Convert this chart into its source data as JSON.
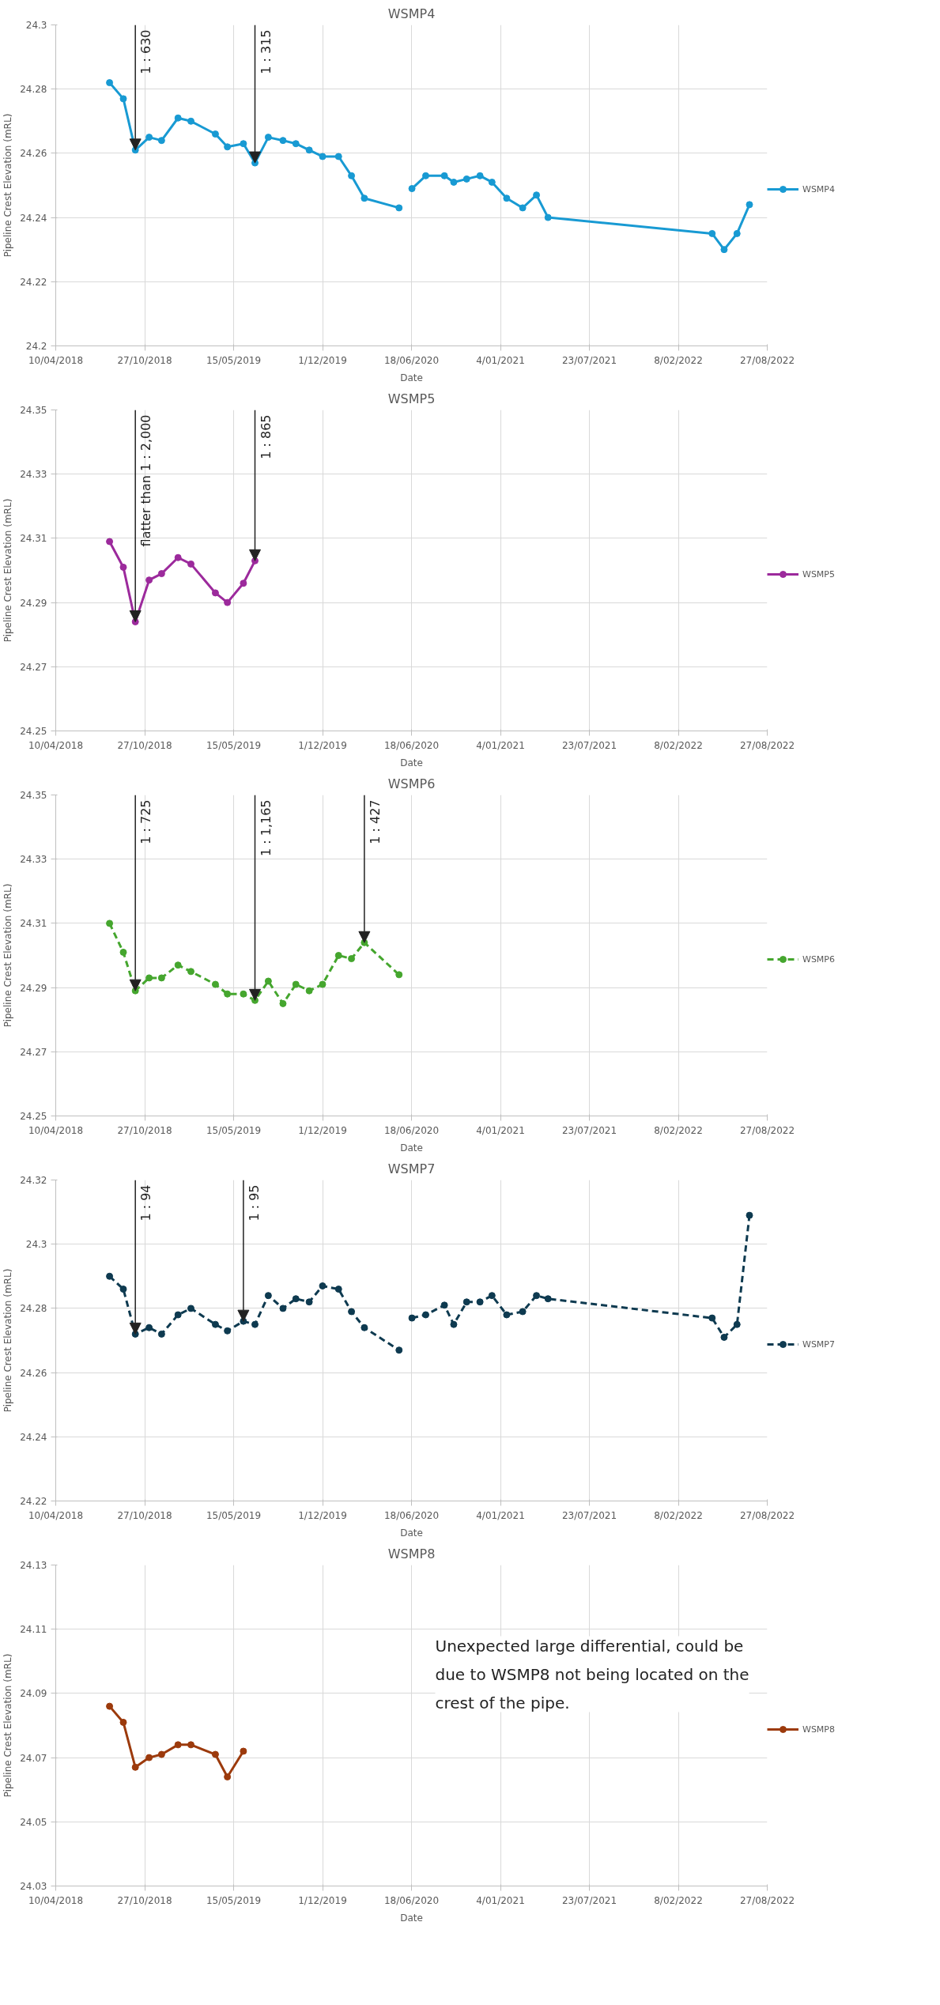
{
  "chart_data": [
    {
      "type": "line",
      "title": "WSMP4",
      "xlabel": "Date",
      "ylabel": "Pipeline Crest Elevation (mRL)",
      "legend": "right",
      "grid": true,
      "marker": "circle",
      "line_style": "solid",
      "x": [
        "2018-08-09",
        "2018-09-09",
        "2018-10-06",
        "2018-11-06",
        "2018-12-04",
        "2019-01-10",
        "2019-02-08",
        "2019-04-04",
        "2019-05-01",
        "2019-06-06",
        "2019-07-02",
        "2019-08-01",
        "2019-09-03",
        "2019-10-02",
        "2019-11-01",
        "2019-12-01",
        "2020-01-06",
        "2020-02-04",
        "2020-03-04",
        "2020-05-21",
        "2020-06-05",
        "2020-06-19",
        "2020-07-20",
        "2020-08-31",
        "2020-09-21",
        "2020-10-20",
        "2020-11-19",
        "2020-12-16",
        "2021-01-18",
        "2021-02-23",
        "2021-03-26",
        "2021-04-21",
        "2022-04-25",
        "2022-05-22",
        "2022-06-20",
        "2022-07-18"
      ],
      "series": [
        {
          "name": "WSMP4",
          "color": "#189ad3",
          "values": [
            24.282,
            24.277,
            24.261,
            24.265,
            24.264,
            24.271,
            24.27,
            24.266,
            24.262,
            24.263,
            24.257,
            24.265,
            24.264,
            24.263,
            24.261,
            24.259,
            24.259,
            24.253,
            24.246,
            24.243,
            null,
            24.249,
            24.253,
            24.253,
            24.251,
            24.252,
            24.253,
            24.251,
            24.246,
            24.243,
            24.247,
            24.24,
            24.235,
            24.23,
            24.235,
            24.244
          ]
        }
      ],
      "xlim": [
        "2018-04-10",
        "2022-08-27"
      ],
      "xticks": [
        {
          "value": "2018-04-10",
          "label": "10/04/2018"
        },
        {
          "value": "2018-10-27",
          "label": "27/10/2018"
        },
        {
          "value": "2019-05-15",
          "label": "15/05/2019"
        },
        {
          "value": "2019-12-01",
          "label": "1/12/2019"
        },
        {
          "value": "2020-06-18",
          "label": "18/06/2020"
        },
        {
          "value": "2021-01-04",
          "label": "4/01/2021"
        },
        {
          "value": "2021-07-23",
          "label": "23/07/2021"
        },
        {
          "value": "2022-02-08",
          "label": "8/02/2022"
        },
        {
          "value": "2022-08-27",
          "label": "27/08/2022"
        }
      ],
      "ylim": [
        24.2,
        24.3
      ],
      "yticks": [
        24.2,
        24.22,
        24.24,
        24.26,
        24.28,
        24.3
      ],
      "annotations": [
        {
          "text": "1 : 630",
          "x": "2018-10-06",
          "y": 24.261
        },
        {
          "text": "1 : 315",
          "x": "2019-07-02",
          "y": 24.257
        }
      ]
    },
    {
      "type": "line",
      "title": "WSMP5",
      "xlabel": "Date",
      "ylabel": "Pipeline Crest Elevation (mRL)",
      "legend": "right",
      "grid": true,
      "marker": "circle",
      "line_style": "solid",
      "x": [
        "2018-08-09",
        "2018-09-09",
        "2018-10-06",
        "2018-11-06",
        "2018-12-04",
        "2019-01-10",
        "2019-02-08",
        "2019-04-04",
        "2019-05-01",
        "2019-06-06",
        "2019-07-02"
      ],
      "series": [
        {
          "name": "WSMP5",
          "color": "#9c2a9c",
          "values": [
            24.309,
            24.301,
            24.284,
            24.297,
            24.299,
            24.304,
            24.302,
            24.293,
            24.29,
            24.296,
            24.303
          ]
        }
      ],
      "xlim": [
        "2018-04-10",
        "2022-08-27"
      ],
      "xticks": [
        {
          "value": "2018-04-10",
          "label": "10/04/2018"
        },
        {
          "value": "2018-10-27",
          "label": "27/10/2018"
        },
        {
          "value": "2019-05-15",
          "label": "15/05/2019"
        },
        {
          "value": "2019-12-01",
          "label": "1/12/2019"
        },
        {
          "value": "2020-06-18",
          "label": "18/06/2020"
        },
        {
          "value": "2021-01-04",
          "label": "4/01/2021"
        },
        {
          "value": "2021-07-23",
          "label": "23/07/2021"
        },
        {
          "value": "2022-02-08",
          "label": "8/02/2022"
        },
        {
          "value": "2022-08-27",
          "label": "27/08/2022"
        }
      ],
      "ylim": [
        24.25,
        24.35
      ],
      "yticks": [
        24.25,
        24.27,
        24.29,
        24.31,
        24.33,
        24.35
      ],
      "annotations": [
        {
          "text": "flatter than 1 : 2,000",
          "x": "2018-10-06",
          "y": 24.284
        },
        {
          "text": "1 : 865",
          "x": "2019-07-02",
          "y": 24.303
        }
      ]
    },
    {
      "type": "line",
      "title": "WSMP6",
      "xlabel": "Date",
      "ylabel": "Pipeline Crest Elevation (mRL)",
      "legend": "right",
      "grid": true,
      "marker": "circle",
      "line_style": "dashed",
      "x": [
        "2018-08-09",
        "2018-09-09",
        "2018-10-06",
        "2018-11-06",
        "2018-12-04",
        "2019-01-10",
        "2019-02-08",
        "2019-04-04",
        "2019-05-01",
        "2019-06-06",
        "2019-07-02",
        "2019-08-01",
        "2019-09-03",
        "2019-10-02",
        "2019-11-01",
        "2019-12-01",
        "2020-01-06",
        "2020-02-04",
        "2020-03-04",
        "2020-05-21"
      ],
      "series": [
        {
          "name": "WSMP6",
          "color": "#45a62e",
          "values": [
            24.31,
            24.301,
            24.289,
            24.293,
            24.293,
            24.297,
            24.295,
            24.291,
            24.288,
            24.288,
            24.286,
            24.292,
            24.285,
            24.291,
            24.289,
            24.291,
            24.3,
            24.299,
            24.304,
            24.294
          ]
        }
      ],
      "xlim": [
        "2018-04-10",
        "2022-08-27"
      ],
      "xticks": [
        {
          "value": "2018-04-10",
          "label": "10/04/2018"
        },
        {
          "value": "2018-10-27",
          "label": "27/10/2018"
        },
        {
          "value": "2019-05-15",
          "label": "15/05/2019"
        },
        {
          "value": "2019-12-01",
          "label": "1/12/2019"
        },
        {
          "value": "2020-06-18",
          "label": "18/06/2020"
        },
        {
          "value": "2021-01-04",
          "label": "4/01/2021"
        },
        {
          "value": "2021-07-23",
          "label": "23/07/2021"
        },
        {
          "value": "2022-02-08",
          "label": "8/02/2022"
        },
        {
          "value": "2022-08-27",
          "label": "27/08/2022"
        }
      ],
      "ylim": [
        24.25,
        24.35
      ],
      "yticks": [
        24.25,
        24.27,
        24.29,
        24.31,
        24.33,
        24.35
      ],
      "annotations": [
        {
          "text": "1 : 725",
          "x": "2018-10-06",
          "y": 24.289
        },
        {
          "text": "1 : 1,165",
          "x": "2019-07-02",
          "y": 24.286
        },
        {
          "text": "1 : 427",
          "x": "2020-03-04",
          "y": 24.304
        }
      ]
    },
    {
      "type": "line",
      "title": "WSMP7",
      "xlabel": "Date",
      "ylabel": "Pipeline Crest Elevation (mRL)",
      "legend": "right",
      "grid": true,
      "marker": "circle",
      "line_style": "dashed",
      "x": [
        "2018-08-09",
        "2018-09-09",
        "2018-10-06",
        "2018-11-06",
        "2018-12-04",
        "2019-01-10",
        "2019-02-08",
        "2019-04-04",
        "2019-05-01",
        "2019-06-06",
        "2019-07-02",
        "2019-08-01",
        "2019-09-03",
        "2019-10-02",
        "2019-11-01",
        "2019-12-01",
        "2020-01-06",
        "2020-02-04",
        "2020-03-04",
        "2020-05-21",
        "2020-06-05",
        "2020-06-19",
        "2020-07-20",
        "2020-08-31",
        "2020-09-21",
        "2020-10-20",
        "2020-11-19",
        "2020-12-16",
        "2021-01-18",
        "2021-02-23",
        "2021-03-26",
        "2021-04-21",
        "2022-04-25",
        "2022-05-22",
        "2022-06-20",
        "2022-07-18"
      ],
      "series": [
        {
          "name": "WSMP7",
          "color": "#0e3a50",
          "values": [
            24.29,
            24.286,
            24.272,
            24.274,
            24.272,
            24.278,
            24.28,
            24.275,
            24.273,
            24.276,
            24.275,
            24.284,
            24.28,
            24.283,
            24.282,
            24.287,
            24.286,
            24.279,
            24.274,
            24.267,
            null,
            24.277,
            24.278,
            24.281,
            24.275,
            24.282,
            24.282,
            24.284,
            24.278,
            24.279,
            24.284,
            24.283,
            24.277,
            24.271,
            24.275,
            24.309
          ]
        }
      ],
      "xlim": [
        "2018-04-10",
        "2022-08-27"
      ],
      "xticks": [
        {
          "value": "2018-04-10",
          "label": "10/04/2018"
        },
        {
          "value": "2018-10-27",
          "label": "27/10/2018"
        },
        {
          "value": "2019-05-15",
          "label": "15/05/2019"
        },
        {
          "value": "2019-12-01",
          "label": "1/12/2019"
        },
        {
          "value": "2020-06-18",
          "label": "18/06/2020"
        },
        {
          "value": "2021-01-04",
          "label": "4/01/2021"
        },
        {
          "value": "2021-07-23",
          "label": "23/07/2021"
        },
        {
          "value": "2022-02-08",
          "label": "8/02/2022"
        },
        {
          "value": "2022-08-27",
          "label": "27/08/2022"
        }
      ],
      "ylim": [
        24.22,
        24.32
      ],
      "yticks": [
        24.22,
        24.24,
        24.26,
        24.28,
        24.3,
        24.32
      ],
      "annotations": [
        {
          "text": "1 : 94",
          "x": "2018-10-06",
          "y": 24.272
        },
        {
          "text": "1 : 95",
          "x": "2019-06-06",
          "y": 24.276
        }
      ]
    },
    {
      "type": "line",
      "title": "WSMP8",
      "xlabel": "Date",
      "ylabel": "Pipeline Crest Elevation (mRL)",
      "legend": "right",
      "grid": true,
      "marker": "circle",
      "line_style": "solid",
      "x": [
        "2018-08-09",
        "2018-09-09",
        "2018-10-06",
        "2018-11-06",
        "2018-12-04",
        "2019-01-10",
        "2019-02-08",
        "2019-04-04",
        "2019-05-01",
        "2019-06-06"
      ],
      "series": [
        {
          "name": "WSMP8",
          "color": "#9c3a0c",
          "values": [
            24.086,
            24.081,
            24.067,
            24.07,
            24.071,
            24.074,
            24.074,
            24.071,
            24.064,
            24.072
          ]
        }
      ],
      "xlim": [
        "2018-04-10",
        "2022-08-27"
      ],
      "xticks": [
        {
          "value": "2018-04-10",
          "label": "10/04/2018"
        },
        {
          "value": "2018-10-27",
          "label": "27/10/2018"
        },
        {
          "value": "2019-05-15",
          "label": "15/05/2019"
        },
        {
          "value": "2019-12-01",
          "label": "1/12/2019"
        },
        {
          "value": "2020-06-18",
          "label": "18/06/2020"
        },
        {
          "value": "2021-01-04",
          "label": "4/01/2021"
        },
        {
          "value": "2021-07-23",
          "label": "23/07/2021"
        },
        {
          "value": "2022-02-08",
          "label": "8/02/2022"
        },
        {
          "value": "2022-08-27",
          "label": "27/08/2022"
        }
      ],
      "ylim": [
        24.03,
        24.13
      ],
      "yticks": [
        24.03,
        24.05,
        24.07,
        24.09,
        24.11,
        24.13
      ],
      "annotations": [
        "Unexpected large differential, could be due to WSMP8 not being located on the crest of the pipe."
      ]
    }
  ]
}
